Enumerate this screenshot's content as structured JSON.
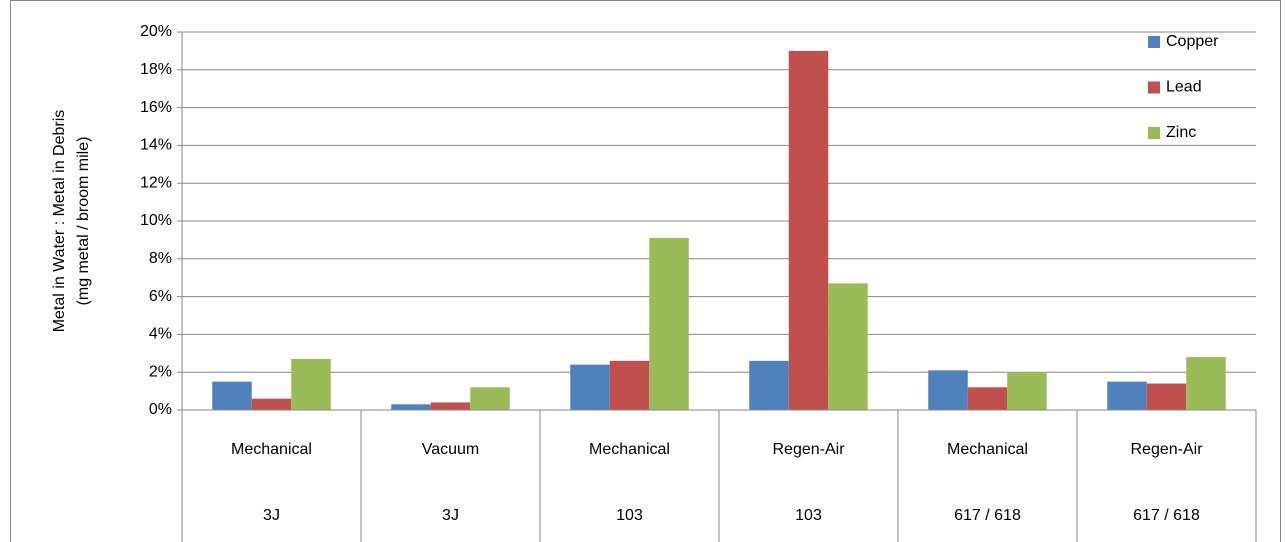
{
  "chart_data": {
    "type": "bar",
    "y_label": [
      "Metal in Water : Metal in Debris",
      "(mg metal / broom mile)"
    ],
    "categories": [
      "Mechanical",
      "Vacuum",
      "Mechanical",
      "Regen-Air",
      "Mechanical",
      "Regen-Air"
    ],
    "category_groups": [
      "3J",
      "3J",
      "103",
      "103",
      "617 / 618",
      "617 / 618"
    ],
    "series": [
      {
        "name": "Copper",
        "color": "#4f81bd",
        "values": [
          1.5,
          0.3,
          2.4,
          2.6,
          2.1,
          1.5
        ]
      },
      {
        "name": "Lead",
        "color": "#c0504d",
        "values": [
          0.6,
          0.4,
          2.6,
          19.0,
          1.2,
          1.4
        ]
      },
      {
        "name": "Zinc",
        "color": "#9bbb59",
        "values": [
          2.7,
          1.2,
          9.1,
          6.7,
          2.0,
          2.8
        ]
      }
    ],
    "ylim": [
      0,
      20
    ],
    "yticks": [
      {
        "value": 0,
        "label": "0%"
      },
      {
        "value": 2,
        "label": "2%"
      },
      {
        "value": 4,
        "label": "4%"
      },
      {
        "value": 6,
        "label": "6%"
      },
      {
        "value": 8,
        "label": "8%"
      },
      {
        "value": 10,
        "label": "10%"
      },
      {
        "value": 12,
        "label": "12%"
      },
      {
        "value": 14,
        "label": "14%"
      },
      {
        "value": 16,
        "label": "16%"
      },
      {
        "value": 18,
        "label": "18%"
      },
      {
        "value": 20,
        "label": "20%"
      }
    ],
    "grid": true,
    "legend": "top-right"
  }
}
